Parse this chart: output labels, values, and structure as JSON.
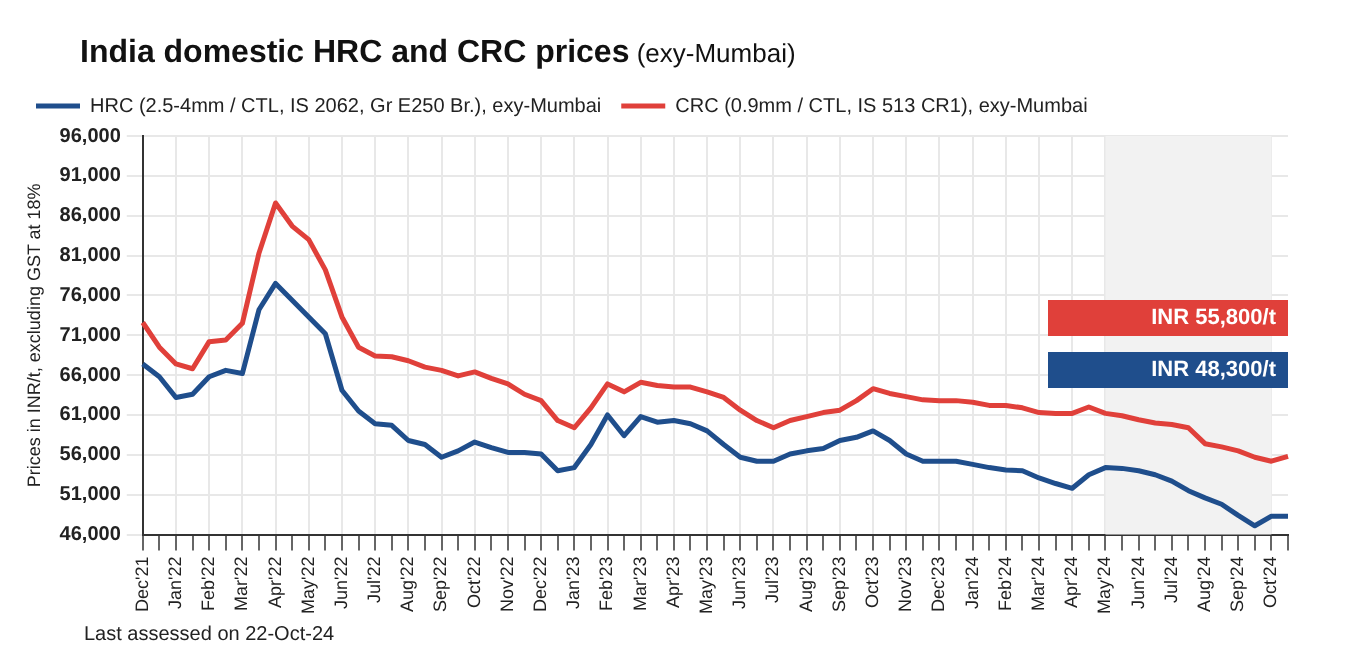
{
  "chart_data": {
    "type": "line",
    "title": "India domestic HRC and CRC prices",
    "subtitle": "(exy-Mumbai)",
    "ylabel": "Prices in INR/t, excluding GST at 18%",
    "categories": [
      "Dec'21",
      null,
      "Jan'22",
      null,
      "Feb'22",
      null,
      "Mar'22",
      null,
      "Apr'22",
      null,
      "May'22",
      null,
      "Jun'22",
      null,
      "Jul'22",
      null,
      "Aug'22",
      null,
      "Sep'22",
      null,
      "Oct'22",
      null,
      "Nov'22",
      null,
      "Dec'22",
      null,
      "Jan'23",
      null,
      "Feb'23",
      null,
      "Mar'23",
      null,
      "Apr'23",
      null,
      "May'23",
      null,
      "Jun'23",
      null,
      "Jul'23",
      null,
      "Aug'23",
      null,
      "Sep'23",
      null,
      "Oct'23",
      null,
      "Nov'23",
      null,
      "Dec'23",
      null,
      "Jan'24",
      null,
      "Feb'24",
      null,
      "Mar'24",
      null,
      "Apr'24",
      null,
      "May'24",
      null,
      "Jun'24",
      null,
      "Jul'24",
      null,
      "Aug'24",
      null,
      "Sep'24",
      null,
      "Oct'24",
      null
    ],
    "series": [
      {
        "name": "HRC (2.5-4mm / CTL, IS 2062, Gr E250 Br.), exy-Mumbai",
        "color": "#1f4e8c",
        "values": [
          67400,
          65800,
          63200,
          63600,
          65800,
          66600,
          66200,
          74200,
          77500,
          75400,
          73300,
          71200,
          64100,
          61500,
          59900,
          59700,
          57800,
          57300,
          55700,
          56500,
          57600,
          56900,
          56300,
          56300,
          56100,
          54000,
          54400,
          57300,
          61000,
          58400,
          60800,
          60100,
          60300,
          59900,
          59000,
          57300,
          55700,
          55200,
          55200,
          56100,
          56500,
          56800,
          57800,
          58200,
          59000,
          57800,
          56100,
          55200,
          55200,
          55200,
          54800,
          54400,
          54100,
          54000,
          53100,
          52400,
          51800,
          53500,
          54400,
          54300,
          54000,
          53500,
          52700,
          51500,
          50600,
          49800,
          48400,
          47100,
          48300,
          48300
        ]
      },
      {
        "name": "CRC (0.9mm / CTL, IS 513 CR1), exy-Mumbai",
        "color": "#e0403a",
        "values": [
          72600,
          69500,
          67400,
          66800,
          70200,
          70400,
          72500,
          81300,
          87600,
          84700,
          83000,
          79200,
          73300,
          69500,
          68400,
          68300,
          67800,
          67000,
          66600,
          65900,
          66400,
          65600,
          64900,
          63600,
          62800,
          60300,
          59400,
          61900,
          64900,
          63900,
          65100,
          64700,
          64500,
          64500,
          63900,
          63200,
          61600,
          60300,
          59400,
          60300,
          60800,
          61300,
          61600,
          62800,
          64300,
          63700,
          63300,
          62900,
          62800,
          62800,
          62600,
          62200,
          62200,
          61900,
          61300,
          61200,
          61200,
          62000,
          61200,
          60900,
          60400,
          60000,
          59800,
          59400,
          57400,
          57000,
          56500,
          55700,
          55200,
          55800
        ]
      }
    ],
    "ylim": [
      46000,
      96000
    ],
    "yticks": [
      {
        "value": 46000,
        "label": "46,000"
      },
      {
        "value": 51000,
        "label": "51,000"
      },
      {
        "value": 56000,
        "label": "56,000"
      },
      {
        "value": 61000,
        "label": "61,000"
      },
      {
        "value": 66000,
        "label": "66,000"
      },
      {
        "value": 71000,
        "label": "71,000"
      },
      {
        "value": 76000,
        "label": "76,000"
      },
      {
        "value": 81000,
        "label": "81,000"
      },
      {
        "value": 86000,
        "label": "86,000"
      },
      {
        "value": 91000,
        "label": "91,000"
      },
      {
        "value": 96000,
        "label": "96,000"
      }
    ],
    "bands": [
      {
        "axis": "x",
        "from": "May'24",
        "to": "Oct'24",
        "color": "#f2f2f2"
      }
    ],
    "annotations": [
      "INR 55,800/t",
      "INR 48,300/t",
      "Last assessed on 22-Oct-24"
    ],
    "grid": true,
    "legend": "top",
    "marker": "none",
    "line_style": "solid"
  }
}
